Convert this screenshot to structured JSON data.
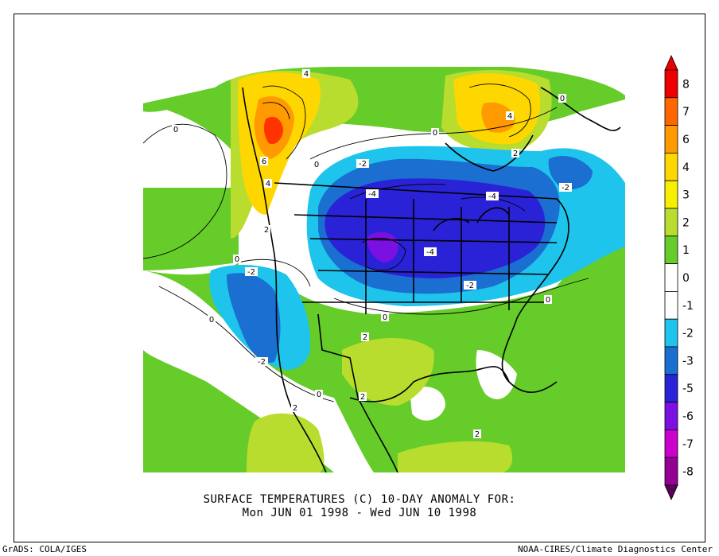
{
  "title_line1": "SURFACE TEMPERATURES (C)   10-DAY ANOMALY FOR:",
  "title_line2": "Mon JUN 01 1998 - Wed JUN 10 1998",
  "credit_left": "GrADS: COLA/IGES",
  "credit_right": "NOAA-CIRES/Climate Diagnostics Center",
  "colorbar": {
    "levels": [
      {
        "label": "8",
        "color": "#ee0000"
      },
      {
        "label": "7",
        "color": "#ff6600"
      },
      {
        "label": "6",
        "color": "#ff9a00"
      },
      {
        "label": "4",
        "color": "#ffd700"
      },
      {
        "label": "3",
        "color": "#f7ef00"
      },
      {
        "label": "2",
        "color": "#b9dd2e"
      },
      {
        "label": "1",
        "color": "#66cc2a"
      },
      {
        "label": "0",
        "color": "#ffffff"
      },
      {
        "label": "-1",
        "color": "#ffffff"
      },
      {
        "label": "-2",
        "color": "#1ec4ec"
      },
      {
        "label": "-3",
        "color": "#1a6fd0"
      },
      {
        "label": "-5",
        "color": "#2a22d6"
      },
      {
        "label": "-6",
        "color": "#7a10e2"
      },
      {
        "label": "-7",
        "color": "#cc00cc"
      },
      {
        "label": "-8",
        "color": "#930093"
      }
    ],
    "bottom_color": "#5a005a",
    "top_color": "#ee0000"
  },
  "map_labels": [
    "4",
    "6",
    "4",
    "2",
    "0",
    "-2",
    "-4",
    "-4",
    "-4",
    "-2",
    "-2",
    "-2",
    "-2",
    "0",
    "0",
    "2",
    "2",
    "2",
    "2",
    "-2",
    "-4",
    "4",
    "2",
    "0"
  ],
  "colors": {
    "green": "#66cc2a",
    "yellow_green": "#b9dd2e",
    "yellow": "#ffd700",
    "orange": "#ff9a00",
    "red": "#ff3300",
    "light_blue": "#1ec4ec",
    "blue": "#1a6fd0",
    "dark_blue": "#2a22d6",
    "purple": "#7a10e2"
  }
}
